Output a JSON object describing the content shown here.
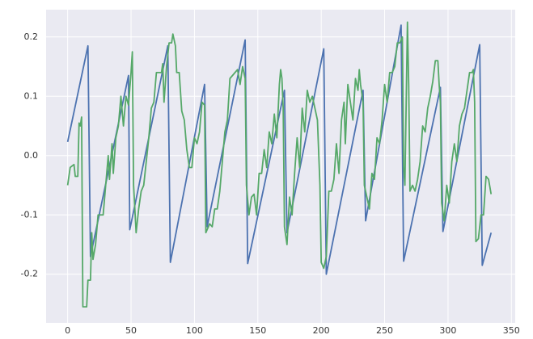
{
  "chart_data": {
    "type": "line",
    "xlim": [
      -17,
      353
    ],
    "ylim": [
      -0.282,
      0.246
    ],
    "xticks": [
      0,
      50,
      100,
      150,
      200,
      250,
      300,
      350
    ],
    "yticks": [
      -0.2,
      -0.1,
      {
        "value": 0,
        "label": "0.0"
      },
      0.1,
      0.2
    ],
    "grid": true,
    "series": [
      {
        "color": "#4c72b0",
        "x": [
          0,
          16,
          18,
          48,
          49,
          79,
          81,
          108,
          110,
          140,
          142,
          171,
          173,
          202,
          204,
          233,
          235,
          263,
          265,
          294,
          296,
          325,
          327,
          334
        ],
        "values": [
          0.023,
          0.185,
          -0.17,
          0.135,
          -0.125,
          0.185,
          -0.18,
          0.12,
          -0.12,
          0.195,
          -0.182,
          0.11,
          -0.13,
          0.18,
          -0.2,
          0.11,
          -0.11,
          0.22,
          -0.178,
          0.115,
          -0.128,
          0.187,
          -0.185,
          -0.13
        ]
      },
      {
        "color": "#55a868",
        "x": [
          0,
          2,
          5,
          6,
          8,
          9,
          10,
          11,
          12,
          15,
          16,
          18,
          19,
          20,
          22,
          24,
          28,
          30,
          32,
          33,
          35,
          36,
          38,
          40,
          42,
          44,
          46,
          48,
          50,
          51,
          52,
          54,
          56,
          58,
          60,
          62,
          64,
          66,
          68,
          70,
          74,
          75,
          76,
          78,
          80,
          82,
          83,
          85,
          86,
          88,
          90,
          92,
          94,
          96,
          98,
          100,
          102,
          104,
          106,
          108,
          109,
          112,
          114,
          116,
          118,
          120,
          122,
          124,
          126,
          128,
          132,
          134,
          136,
          138,
          140,
          141,
          143,
          145,
          147,
          149,
          151,
          153,
          155,
          157,
          159,
          161,
          163,
          165,
          167,
          168,
          169,
          170,
          171,
          173,
          175,
          177,
          179,
          181,
          183,
          185,
          187,
          189,
          191,
          193,
          195,
          197,
          199,
          200,
          202,
          204,
          206,
          208,
          210,
          212,
          214,
          216,
          218,
          219,
          221,
          223,
          225,
          227,
          229,
          230,
          231,
          233,
          234,
          236,
          238,
          240,
          242,
          244,
          246,
          248,
          250,
          252,
          254,
          256,
          258,
          260,
          262,
          264,
          265,
          266,
          268,
          269,
          270,
          272,
          274,
          276,
          278,
          280,
          282,
          284,
          286,
          288,
          290,
          292,
          293,
          294,
          295,
          297,
          299,
          301,
          303,
          305,
          307,
          309,
          311,
          313,
          315,
          317,
          319,
          320,
          321,
          322,
          324,
          326,
          328,
          330,
          332,
          334
        ],
        "values": [
          -0.05,
          -0.02,
          -0.015,
          -0.035,
          -0.035,
          0.055,
          0.05,
          0.065,
          -0.255,
          -0.255,
          -0.21,
          -0.21,
          -0.13,
          -0.175,
          -0.15,
          -0.1,
          -0.1,
          -0.05,
          0,
          -0.04,
          0.02,
          -0.03,
          0.03,
          0.05,
          0.1,
          0.05,
          0.1,
          0.085,
          0.14,
          0.175,
          -0.05,
          -0.13,
          -0.09,
          -0.06,
          -0.05,
          -0.01,
          0.03,
          0.08,
          0.09,
          0.14,
          0.14,
          0.155,
          0.09,
          0.15,
          0.19,
          0.19,
          0.205,
          0.185,
          0.14,
          0.14,
          0.075,
          0.06,
          0.01,
          -0.02,
          -0.02,
          0.03,
          0.02,
          0.04,
          0.09,
          0.085,
          -0.13,
          -0.115,
          -0.12,
          -0.09,
          -0.09,
          -0.06,
          -0.01,
          0.04,
          0.06,
          0.13,
          0.14,
          0.145,
          0.12,
          0.15,
          0.13,
          -0.05,
          -0.1,
          -0.07,
          -0.065,
          -0.1,
          -0.03,
          -0.03,
          0.01,
          -0.02,
          0.04,
          0.02,
          0.07,
          0.03,
          0.12,
          0.145,
          0.13,
          0.08,
          -0.12,
          -0.15,
          -0.07,
          -0.1,
          -0.03,
          0.03,
          -0.02,
          0.08,
          0.04,
          0.11,
          0.09,
          0.1,
          0.08,
          0.06,
          -0.05,
          -0.18,
          -0.19,
          -0.17,
          -0.06,
          -0.06,
          -0.04,
          0.02,
          -0.03,
          0.06,
          0.09,
          0.02,
          0.12,
          0.09,
          0.06,
          0.13,
          0.11,
          0.145,
          0.12,
          0.09,
          -0.05,
          -0.07,
          -0.09,
          -0.03,
          -0.04,
          0.03,
          0.02,
          0.06,
          0.12,
          0.09,
          0.14,
          0.14,
          0.15,
          0.19,
          0.19,
          0.2,
          -0.02,
          -0.05,
          0.225,
          0.12,
          -0.06,
          -0.05,
          -0.06,
          -0.04,
          -0.01,
          0.05,
          0.04,
          0.08,
          0.1,
          0.125,
          0.16,
          0.16,
          0.12,
          0.09,
          -0.08,
          -0.11,
          -0.05,
          -0.08,
          -0.01,
          0.02,
          -0.01,
          0.05,
          0.07,
          0.08,
          0.11,
          0.14,
          0.14,
          0.145,
          0.09,
          -0.145,
          -0.14,
          -0.1,
          -0.1,
          -0.035,
          -0.04,
          -0.065
        ]
      }
    ]
  }
}
